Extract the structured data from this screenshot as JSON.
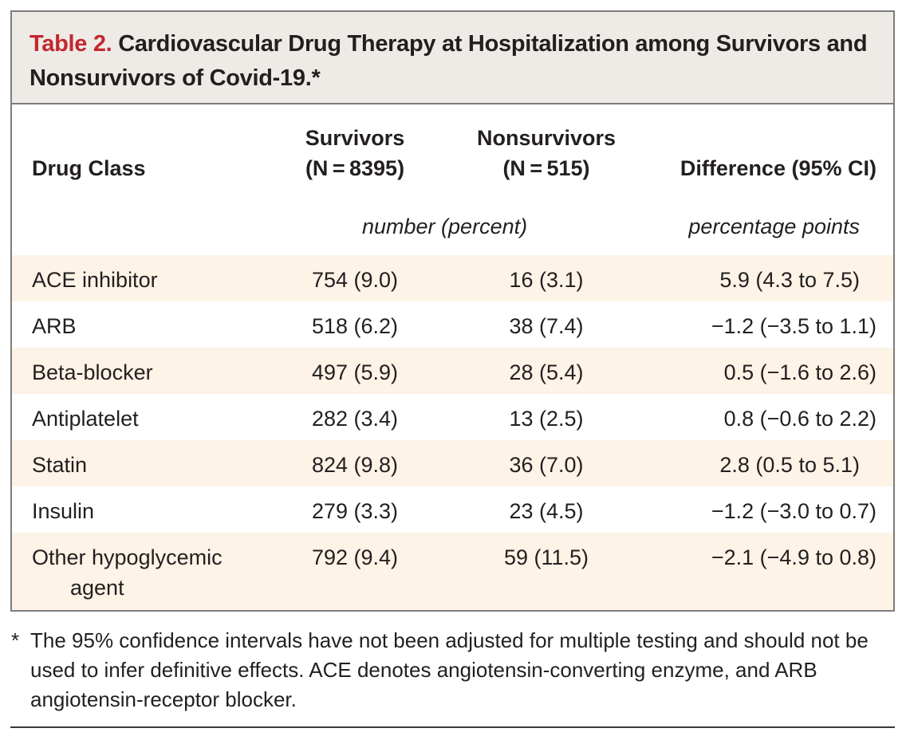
{
  "title": {
    "label": "Table 2.",
    "text": "Cardiovascular Drug Therapy at Hospitalization among Survivors and Nonsurvivors of Covid-19.*"
  },
  "columns": {
    "drug": "Drug Class",
    "survivors_line1": "Survivors",
    "survivors_line2": "(N = 8395)",
    "nonsurvivors_line1": "Nonsurvivors",
    "nonsurvivors_line2": "(N = 515)",
    "difference": "Difference (95% CI)"
  },
  "units": {
    "count": "number (percent)",
    "difference": "percentage points"
  },
  "rows": [
    {
      "drug": "ACE inhibitor",
      "survivors": "754 (9.0)",
      "nonsurvivors": "16 (3.1)",
      "difference": "5.9 (4.3 to 7.5)"
    },
    {
      "drug": "ARB",
      "survivors": "518 (6.2)",
      "nonsurvivors": "38 (7.4)",
      "difference": "−1.2 (−3.5 to 1.1)"
    },
    {
      "drug": "Beta-blocker",
      "survivors": "497 (5.9)",
      "nonsurvivors": "28 (5.4)",
      "difference": "0.5 (−1.6 to 2.6)"
    },
    {
      "drug": "Antiplatelet",
      "survivors": "282 (3.4)",
      "nonsurvivors": "13 (2.5)",
      "difference": "0.8 (−0.6 to 2.2)"
    },
    {
      "drug": "Statin",
      "survivors": "824 (9.8)",
      "nonsurvivors": "36 (7.0)",
      "difference": "2.8 (0.5 to 5.1)"
    },
    {
      "drug": "Insulin",
      "survivors": "279 (3.3)",
      "nonsurvivors": "23 (4.5)",
      "difference": "−1.2 (−3.0 to 0.7)"
    },
    {
      "drug": "Other hypoglycemic",
      "drug_line2": "agent",
      "survivors": "792 (9.4)",
      "nonsurvivors": "59 (11.5)",
      "difference": "−2.1 (−4.9 to 0.8)"
    }
  ],
  "footnote": {
    "marker": "*",
    "text": "The 95% confidence intervals have not been adjusted for multiple testing and should not be used to infer definitive effects. ACE denotes angiotensin-converting enzyme, and ARB angiotensin-receptor blocker."
  },
  "colors": {
    "title_label": "#c4262e",
    "title_bg": "#eeebe6",
    "row_shade": "#fdf3e6",
    "border": "#7c7c7c"
  }
}
